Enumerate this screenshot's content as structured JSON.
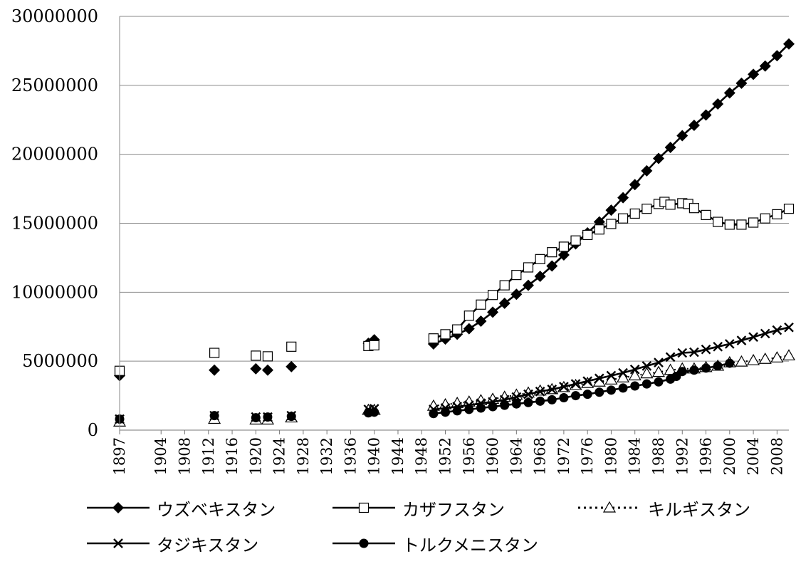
{
  "chart_data": {
    "type": "line",
    "title": "",
    "xlabel": "",
    "ylabel": "",
    "ylim": [
      0,
      30000000
    ],
    "xlim": [
      1897,
      2010
    ],
    "yticks": [
      "30000000",
      "25000000",
      "20000000",
      "15000000",
      "10000000",
      "5000000",
      "0"
    ],
    "xticks": [
      "1897",
      "1904",
      "1908",
      "1912",
      "1916",
      "1920",
      "1924",
      "1928",
      "1932",
      "1936",
      "1940",
      "1944",
      "1948",
      "1952",
      "1956",
      "1960",
      "1964",
      "1968",
      "1972",
      "1976",
      "1980",
      "1984",
      "1988",
      "1992",
      "1996",
      "2000",
      "2004",
      "2008"
    ],
    "grid": "horizontal",
    "legend_position": "bottom",
    "series": [
      {
        "name": "ウズベキスタン",
        "marker": "diamond-filled",
        "line": "solid",
        "isolated": [
          [
            1897,
            3950000
          ],
          [
            1913,
            4350000
          ],
          [
            1920,
            4450000
          ],
          [
            1922,
            4350000
          ],
          [
            1926,
            4600000
          ],
          [
            1939,
            6300000
          ],
          [
            1940,
            6550000
          ]
        ],
        "points": [
          [
            1950,
            6250000
          ],
          [
            1952,
            6600000
          ],
          [
            1954,
            6950000
          ],
          [
            1956,
            7350000
          ],
          [
            1958,
            7900000
          ],
          [
            1960,
            8550000
          ],
          [
            1962,
            9200000
          ],
          [
            1964,
            9850000
          ],
          [
            1966,
            10500000
          ],
          [
            1968,
            11150000
          ],
          [
            1970,
            11900000
          ],
          [
            1972,
            12700000
          ],
          [
            1974,
            13500000
          ],
          [
            1976,
            14300000
          ],
          [
            1978,
            15100000
          ],
          [
            1980,
            15950000
          ],
          [
            1982,
            16850000
          ],
          [
            1984,
            17800000
          ],
          [
            1986,
            18800000
          ],
          [
            1988,
            19700000
          ],
          [
            1990,
            20500000
          ],
          [
            1992,
            21350000
          ],
          [
            1994,
            22100000
          ],
          [
            1996,
            22850000
          ],
          [
            1998,
            23650000
          ],
          [
            2000,
            24450000
          ],
          [
            2002,
            25150000
          ],
          [
            2004,
            25800000
          ],
          [
            2006,
            26400000
          ],
          [
            2008,
            27150000
          ],
          [
            2010,
            28000000
          ]
        ]
      },
      {
        "name": "カザフスタン",
        "marker": "square-open",
        "line": "solid",
        "isolated": [
          [
            1897,
            4300000
          ],
          [
            1913,
            5600000
          ],
          [
            1920,
            5400000
          ],
          [
            1922,
            5350000
          ],
          [
            1926,
            6050000
          ],
          [
            1939,
            6100000
          ],
          [
            1940,
            6150000
          ]
        ],
        "points": [
          [
            1950,
            6650000
          ],
          [
            1952,
            6950000
          ],
          [
            1954,
            7300000
          ],
          [
            1956,
            8300000
          ],
          [
            1958,
            9100000
          ],
          [
            1960,
            9800000
          ],
          [
            1962,
            10500000
          ],
          [
            1964,
            11250000
          ],
          [
            1966,
            11800000
          ],
          [
            1968,
            12400000
          ],
          [
            1970,
            12900000
          ],
          [
            1972,
            13300000
          ],
          [
            1974,
            13750000
          ],
          [
            1976,
            14150000
          ],
          [
            1978,
            14550000
          ],
          [
            1980,
            14950000
          ],
          [
            1982,
            15350000
          ],
          [
            1984,
            15700000
          ],
          [
            1986,
            16050000
          ],
          [
            1988,
            16400000
          ],
          [
            1989,
            16550000
          ],
          [
            1990,
            16350000
          ],
          [
            1992,
            16450000
          ],
          [
            1993,
            16400000
          ],
          [
            1994,
            16100000
          ],
          [
            1996,
            15600000
          ],
          [
            1998,
            15100000
          ],
          [
            2000,
            14900000
          ],
          [
            2002,
            14900000
          ],
          [
            2004,
            15050000
          ],
          [
            2006,
            15350000
          ],
          [
            2008,
            15650000
          ],
          [
            2010,
            16050000
          ]
        ]
      },
      {
        "name": "キルギスタン",
        "marker": "triangle-open",
        "line": "dotted",
        "isolated": [
          [
            1897,
            600000
          ],
          [
            1913,
            800000
          ],
          [
            1920,
            750000
          ],
          [
            1922,
            750000
          ],
          [
            1926,
            900000
          ],
          [
            1939,
            1450000
          ],
          [
            1940,
            1450000
          ]
        ],
        "points": [
          [
            1950,
            1750000
          ],
          [
            1952,
            1850000
          ],
          [
            1954,
            1950000
          ],
          [
            1956,
            2050000
          ],
          [
            1958,
            2150000
          ],
          [
            1960,
            2250000
          ],
          [
            1962,
            2400000
          ],
          [
            1964,
            2550000
          ],
          [
            1966,
            2700000
          ],
          [
            1968,
            2850000
          ],
          [
            1970,
            2950000
          ],
          [
            1972,
            3100000
          ],
          [
            1974,
            3250000
          ],
          [
            1976,
            3400000
          ],
          [
            1978,
            3500000
          ],
          [
            1980,
            3650000
          ],
          [
            1982,
            3800000
          ],
          [
            1984,
            3950000
          ],
          [
            1986,
            4100000
          ],
          [
            1988,
            4200000
          ],
          [
            1990,
            4350000
          ],
          [
            1992,
            4450000
          ],
          [
            1994,
            4450000
          ],
          [
            1996,
            4550000
          ],
          [
            1998,
            4650000
          ],
          [
            2000,
            4900000
          ],
          [
            2002,
            4950000
          ],
          [
            2004,
            5050000
          ],
          [
            2006,
            5150000
          ],
          [
            2008,
            5250000
          ],
          [
            2010,
            5400000
          ]
        ]
      },
      {
        "name": "タジキスタン",
        "marker": "x",
        "line": "solid",
        "isolated": [
          [
            1897,
            800000
          ],
          [
            1913,
            1050000
          ],
          [
            1920,
            950000
          ],
          [
            1922,
            950000
          ],
          [
            1926,
            1050000
          ],
          [
            1939,
            1500000
          ],
          [
            1940,
            1550000
          ]
        ],
        "points": [
          [
            1950,
            1500000
          ],
          [
            1952,
            1600000
          ],
          [
            1954,
            1700000
          ],
          [
            1956,
            1800000
          ],
          [
            1958,
            1950000
          ],
          [
            1960,
            2050000
          ],
          [
            1962,
            2200000
          ],
          [
            1964,
            2400000
          ],
          [
            1966,
            2600000
          ],
          [
            1968,
            2800000
          ],
          [
            1970,
            2950000
          ],
          [
            1972,
            3150000
          ],
          [
            1974,
            3350000
          ],
          [
            1976,
            3550000
          ],
          [
            1978,
            3750000
          ],
          [
            1980,
            3950000
          ],
          [
            1982,
            4150000
          ],
          [
            1984,
            4400000
          ],
          [
            1986,
            4650000
          ],
          [
            1988,
            4900000
          ],
          [
            1990,
            5300000
          ],
          [
            1992,
            5600000
          ],
          [
            1994,
            5650000
          ],
          [
            1996,
            5850000
          ],
          [
            1998,
            6050000
          ],
          [
            2000,
            6250000
          ],
          [
            2002,
            6500000
          ],
          [
            2004,
            6750000
          ],
          [
            2006,
            7000000
          ],
          [
            2008,
            7250000
          ],
          [
            2010,
            7450000
          ]
        ]
      },
      {
        "name": "トルクメニスタン",
        "marker": "circle-filled",
        "line": "solid",
        "isolated": [
          [
            1897,
            800000
          ],
          [
            1913,
            1050000
          ],
          [
            1920,
            900000
          ],
          [
            1922,
            950000
          ],
          [
            1926,
            1000000
          ],
          [
            1939,
            1250000
          ],
          [
            1940,
            1300000
          ]
        ],
        "points": [
          [
            1950,
            1200000
          ],
          [
            1952,
            1300000
          ],
          [
            1954,
            1400000
          ],
          [
            1956,
            1500000
          ],
          [
            1958,
            1600000
          ],
          [
            1960,
            1700000
          ],
          [
            1962,
            1800000
          ],
          [
            1964,
            1900000
          ],
          [
            1966,
            2000000
          ],
          [
            1968,
            2100000
          ],
          [
            1970,
            2200000
          ],
          [
            1972,
            2350000
          ],
          [
            1974,
            2500000
          ],
          [
            1976,
            2600000
          ],
          [
            1978,
            2750000
          ],
          [
            1980,
            2900000
          ],
          [
            1982,
            3050000
          ],
          [
            1984,
            3200000
          ],
          [
            1986,
            3350000
          ],
          [
            1988,
            3500000
          ],
          [
            1990,
            3700000
          ],
          [
            1991,
            3900000
          ],
          [
            1992,
            4250000
          ],
          [
            1994,
            4350000
          ],
          [
            1996,
            4500000
          ],
          [
            1998,
            4650000
          ],
          [
            2000,
            4850000
          ]
        ]
      }
    ]
  }
}
